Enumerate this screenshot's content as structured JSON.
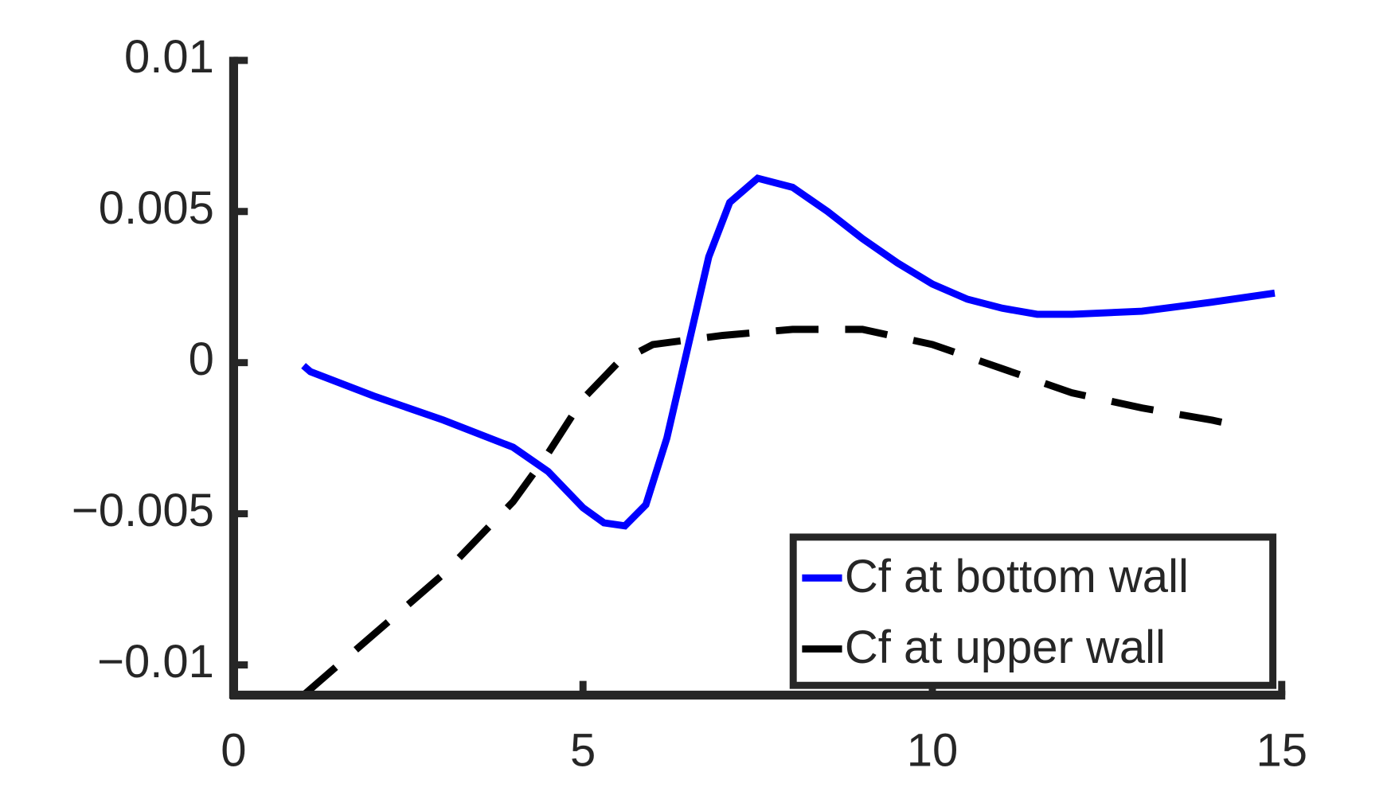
{
  "chart_data": {
    "type": "line",
    "xlim": [
      0,
      15
    ],
    "xticks": [
      0,
      5,
      10,
      15
    ],
    "ylim": [
      -0.011,
      0.01
    ],
    "yticks": [
      {
        "value": -0.01,
        "label": "−0.01"
      },
      {
        "value": -0.005,
        "label": "−0.005"
      },
      0,
      0.005,
      0.01
    ],
    "legend": "lower right",
    "series": [
      {
        "name": "Cf at bottom wall",
        "color": "#0000ff",
        "dash": false,
        "x": [
          1,
          1.1,
          2,
          3,
          4,
          4.5,
          5,
          5.3,
          5.6,
          5.9,
          6.2,
          6.5,
          6.8,
          7.1,
          7.5,
          8,
          8.5,
          9,
          9.5,
          10,
          10.5,
          11,
          11.5,
          12,
          13,
          14,
          14.9
        ],
        "values": [
          -0.0001,
          -0.0003,
          -0.0011,
          -0.0019,
          -0.0028,
          -0.0036,
          -0.0048,
          -0.0053,
          -0.0054,
          -0.0047,
          -0.0025,
          0.0005,
          0.0035,
          0.0053,
          0.0061,
          0.0058,
          0.005,
          0.0041,
          0.0033,
          0.0026,
          0.0021,
          0.0018,
          0.0016,
          0.0016,
          0.0017,
          0.002,
          0.0023
        ]
      },
      {
        "name": "Cf at upper wall",
        "color": "#000000",
        "dash": true,
        "x": [
          1,
          2,
          3,
          4,
          4.5,
          5,
          5.5,
          6,
          7,
          8,
          9,
          10,
          11,
          12,
          13,
          14,
          14.4
        ],
        "values": [
          -0.011,
          -0.009,
          -0.007,
          -0.0046,
          -0.003,
          -0.0012,
          0,
          0.0006,
          0.0009,
          0.0011,
          0.0011,
          0.0006,
          -0.0002,
          -0.001,
          -0.0015,
          -0.0019,
          -0.0021
        ]
      }
    ]
  }
}
